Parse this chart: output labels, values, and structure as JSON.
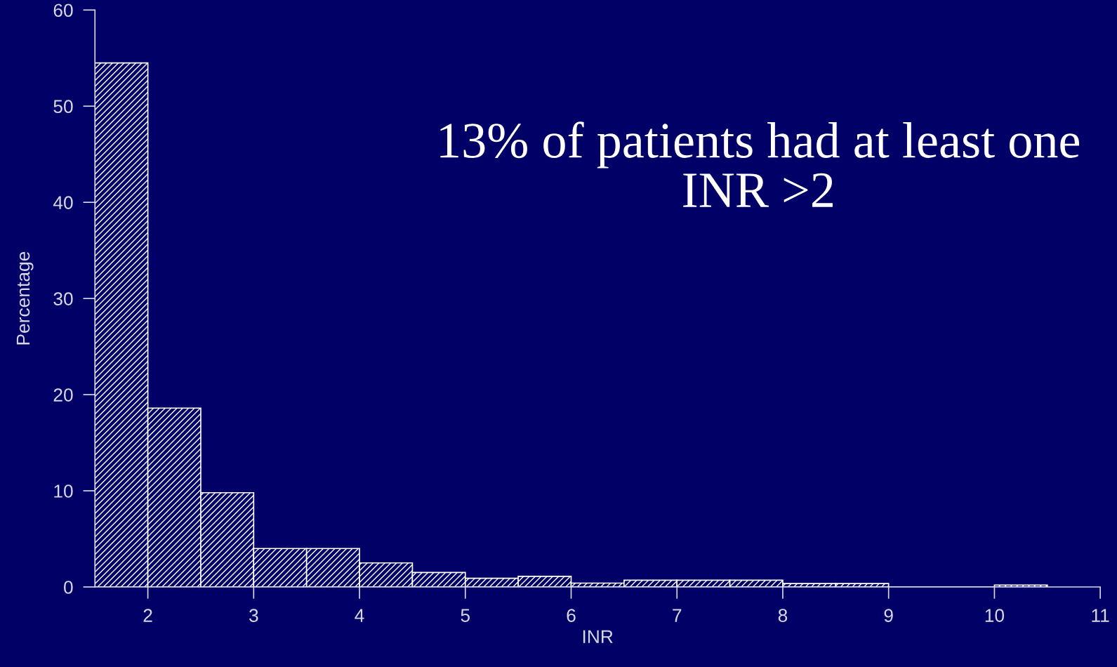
{
  "chart_data": {
    "type": "histogram",
    "xlabel": "INR",
    "ylabel": "Percentage",
    "annotations": [
      "13% of patients had at least one INR >2"
    ],
    "bins": [
      1.5,
      2,
      2.5,
      3,
      3.5,
      4,
      4.5,
      5,
      5.5,
      6,
      6.5,
      7,
      7.5,
      8,
      8.5,
      9,
      9.5,
      10,
      10.5
    ],
    "values": [
      54.5,
      18.6,
      9.8,
      4.0,
      4.0,
      2.5,
      1.5,
      0.9,
      1.1,
      0.4,
      0.7,
      0.7,
      0.7,
      0.35,
      0.35,
      0,
      0,
      0.2
    ],
    "color": "#ffffff",
    "xlim": [
      1.5,
      11
    ],
    "xticks": [
      2,
      3,
      4,
      5,
      6,
      7,
      8,
      9,
      10,
      11
    ],
    "ylim": [
      0,
      60
    ],
    "yticks": [
      0,
      10,
      20,
      30,
      40,
      50,
      60
    ],
    "grid": false
  }
}
